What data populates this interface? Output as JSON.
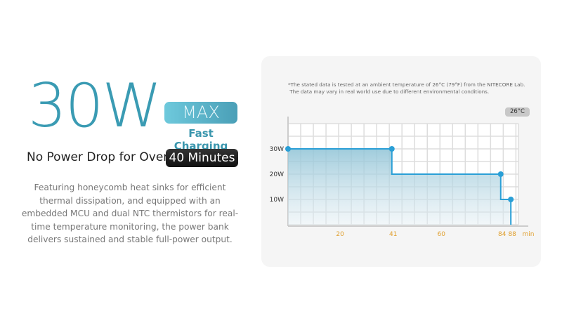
{
  "headline": {
    "power": "30W",
    "max_badge": "MAX",
    "subtitle": "Fast Charging",
    "no_drop_text": "No Power Drop for Over",
    "minutes_badge": "40 Minutes"
  },
  "description": "Featuring honeycomb heat sinks for efficient thermal dissipation, and equipped with an embedded MCU and dual NTC thermistors for real-time temperature monitoring, the power bank delivers sustained and stable full-power output.",
  "chart_note": "*The stated data is tested at an ambient temperature of 26°C (79°F) from the NITECORE Lab.\n The data may vary in real world use due to different environmental conditions.",
  "temperature_badge": "26°C",
  "colors": {
    "accent": "#3a9bb3",
    "line": "#2a9fd6",
    "tick_label": "#e0a030"
  },
  "chart_data": {
    "type": "area",
    "step": true,
    "x": [
      0,
      41,
      41,
      84,
      84,
      88,
      88
    ],
    "y": [
      30,
      30,
      20,
      20,
      10,
      10,
      0
    ],
    "markers": [
      [
        0,
        30
      ],
      [
        41,
        30
      ],
      [
        84,
        20
      ],
      [
        88,
        10
      ]
    ],
    "xticks": [
      20,
      41,
      60,
      84,
      88
    ],
    "xtick_labels": [
      "20",
      "41",
      "60",
      "84",
      "88"
    ],
    "xlabel": "min",
    "yticks": [
      10,
      20,
      30
    ],
    "ytick_labels": [
      "10W",
      "20W",
      "30W"
    ],
    "xlim": [
      0,
      91
    ],
    "ylim": [
      0,
      40
    ],
    "grid": true
  }
}
